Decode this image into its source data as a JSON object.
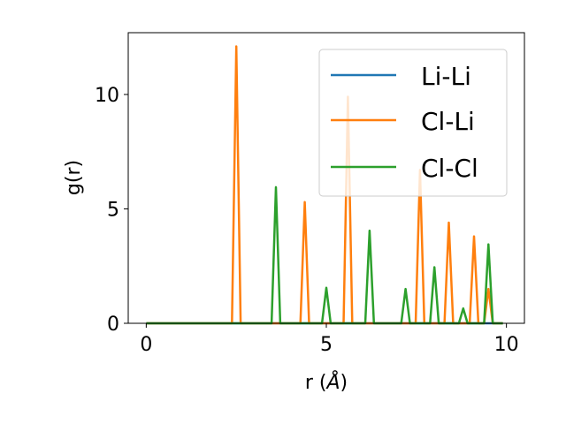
{
  "chart_data": {
    "type": "line",
    "title": "",
    "xlabel": "r (",
    "xlabel_unit": "Å",
    "xlabel_close": ")",
    "ylabel": "g(r)",
    "xlim": [
      -0.5,
      10.5
    ],
    "ylim": [
      0,
      12.7
    ],
    "xticks": [
      0,
      5,
      10
    ],
    "xtick_labels": [
      "0",
      "5",
      "10"
    ],
    "yticks": [
      0,
      5,
      10
    ],
    "ytick_labels": [
      "0",
      "5",
      "10"
    ],
    "grid": false,
    "legend_position": "top-right",
    "series": [
      {
        "name": "Li-Li",
        "color": "#1f77b4",
        "peaks": []
      },
      {
        "name": "Cl-Li",
        "color": "#ff7f0e",
        "peaks": [
          {
            "r": 2.5,
            "g": 12.1
          },
          {
            "r": 4.4,
            "g": 5.3
          },
          {
            "r": 5.6,
            "g": 9.9
          },
          {
            "r": 7.6,
            "g": 6.7
          },
          {
            "r": 8.4,
            "g": 4.4
          },
          {
            "r": 9.1,
            "g": 3.8
          },
          {
            "r": 9.5,
            "g": 1.5
          }
        ]
      },
      {
        "name": "Cl-Cl",
        "color": "#2ca02c",
        "peaks": [
          {
            "r": 3.6,
            "g": 5.95
          },
          {
            "r": 5.0,
            "g": 1.55
          },
          {
            "r": 6.2,
            "g": 4.05
          },
          {
            "r": 7.2,
            "g": 1.5
          },
          {
            "r": 8.0,
            "g": 2.45
          },
          {
            "r": 8.8,
            "g": 0.65
          },
          {
            "r": 9.5,
            "g": 3.45
          }
        ]
      }
    ]
  }
}
